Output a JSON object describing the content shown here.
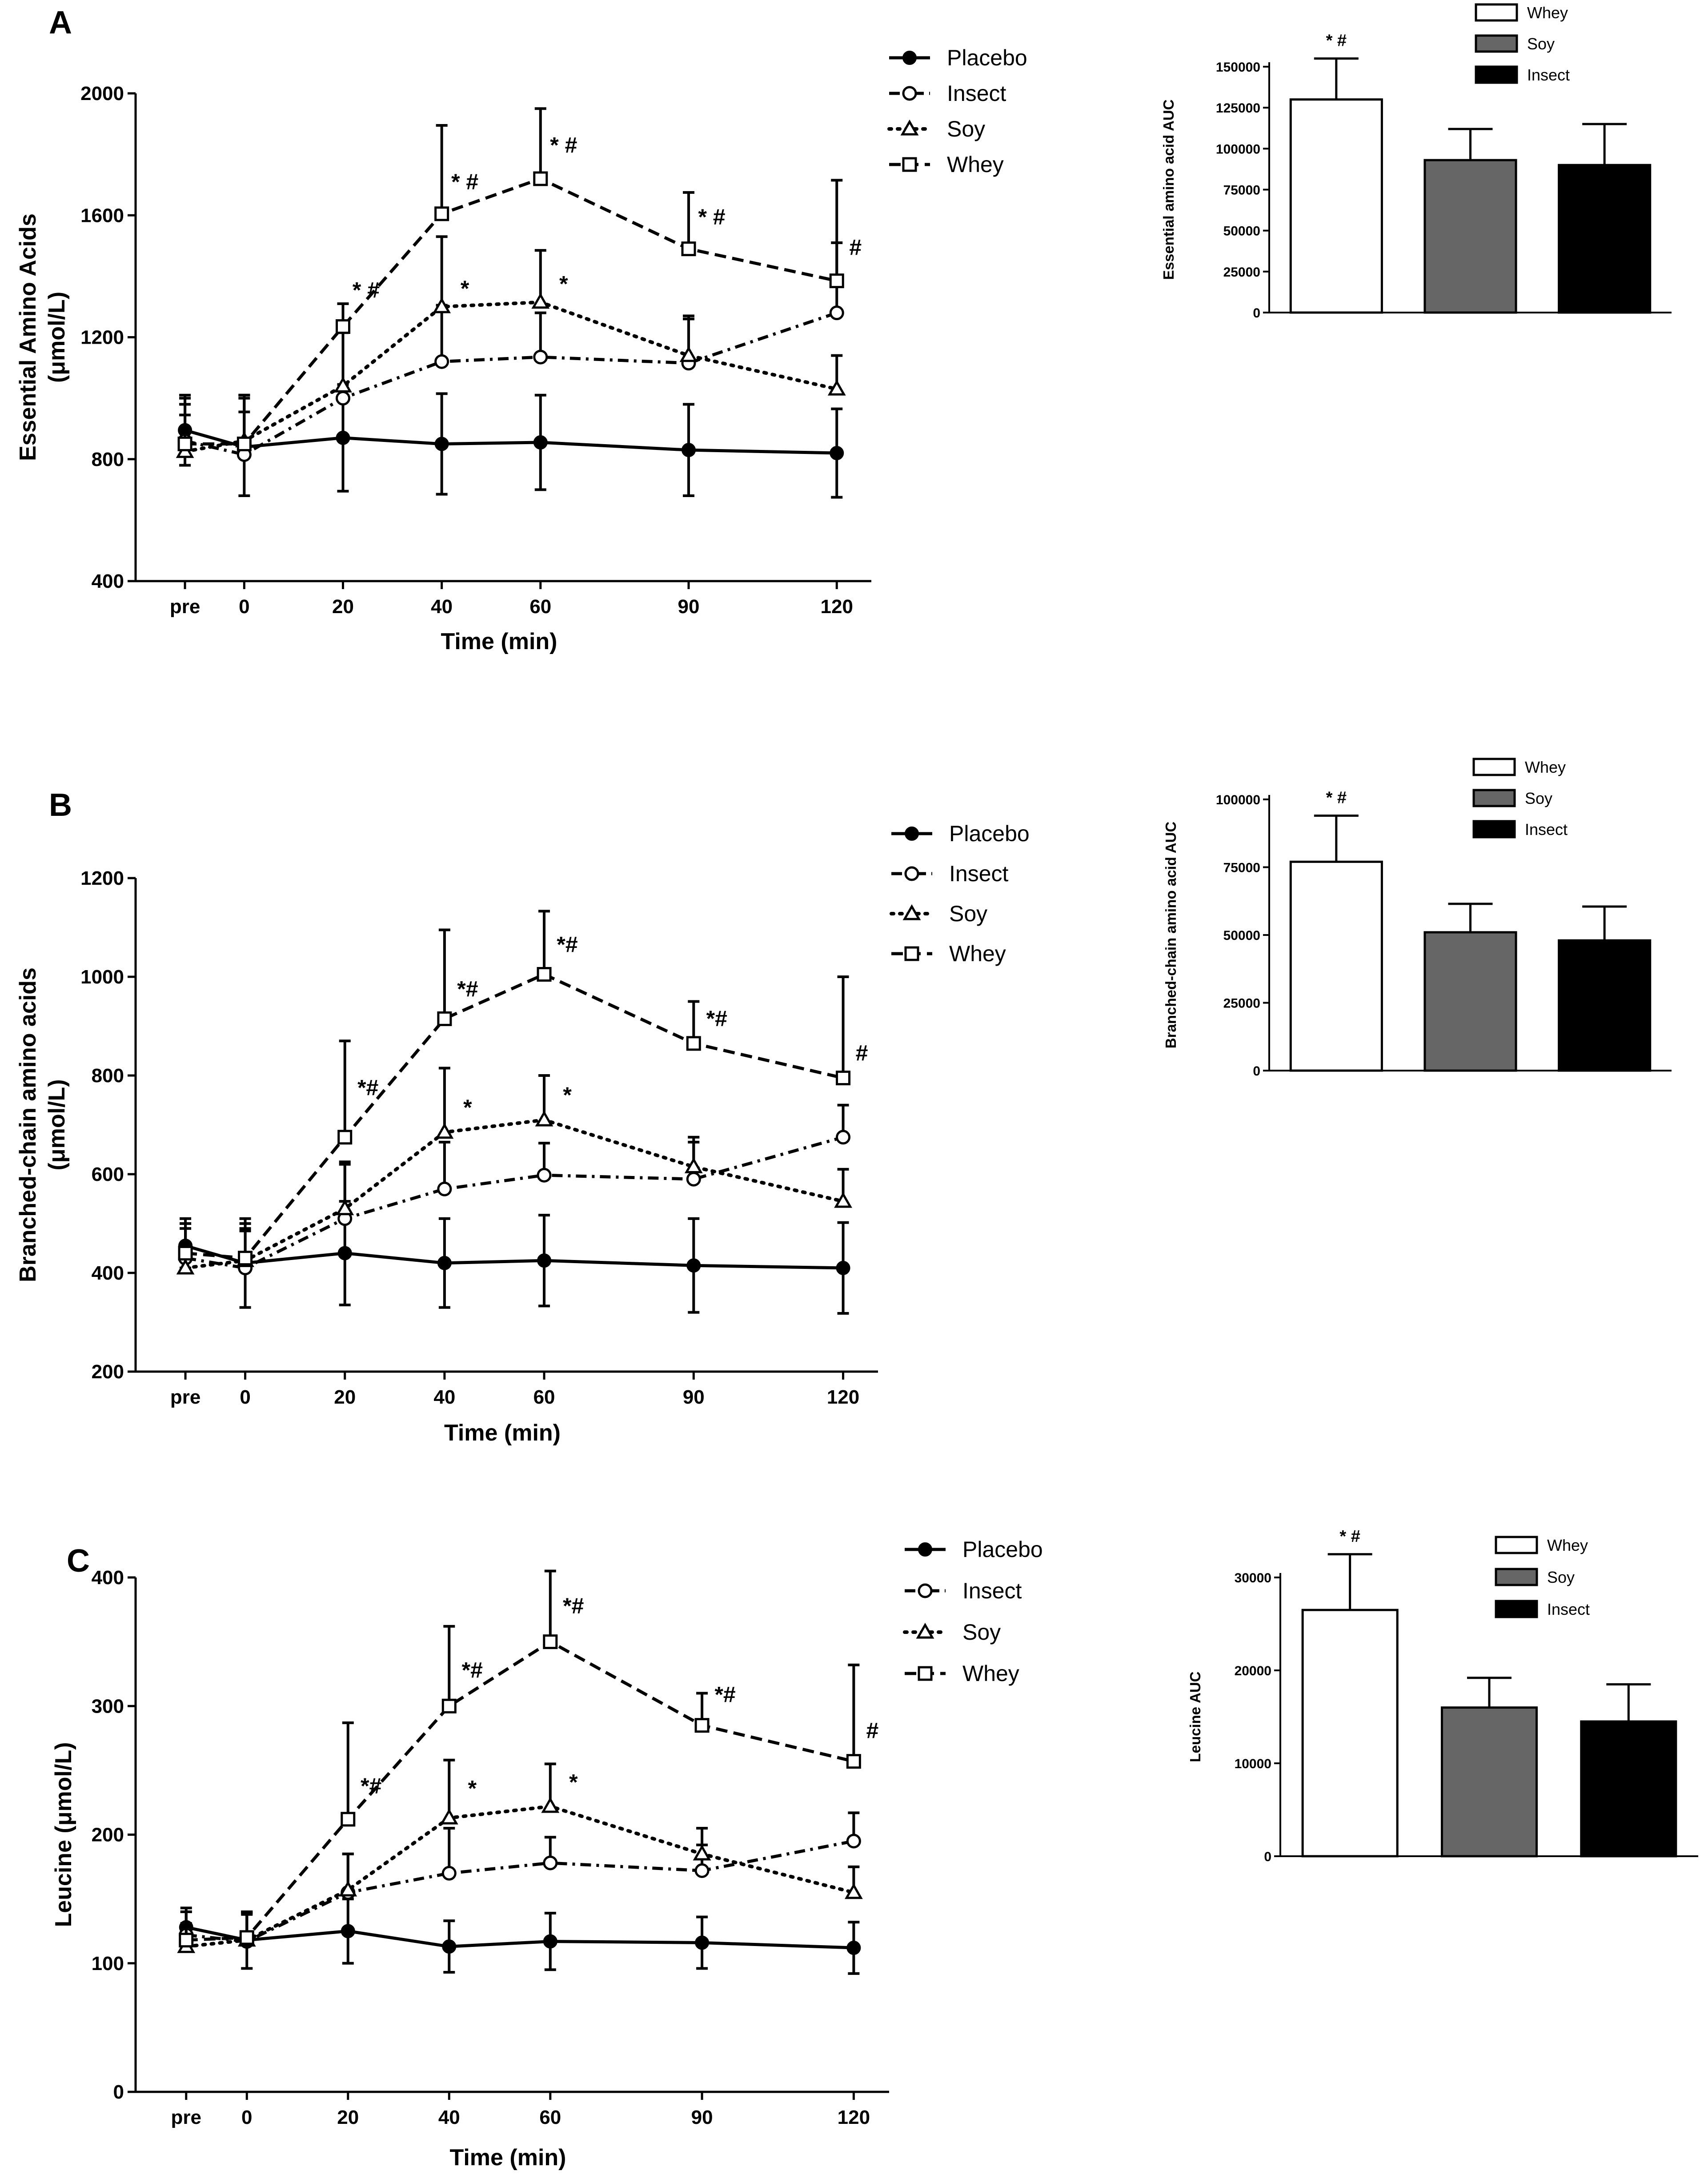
{
  "chart_data": [
    {
      "type": "line",
      "panel": "A",
      "ylabel": "Essential Amino Acids",
      "yunit": "(μmol/L)",
      "xlabel": "Time (min)",
      "categories": [
        "pre",
        "0",
        "20",
        "40",
        "60",
        "90",
        "120"
      ],
      "x": [
        -12,
        0,
        20,
        40,
        60,
        90,
        120
      ],
      "ylim": [
        400,
        2000
      ],
      "yticks": [
        400,
        800,
        1200,
        1600,
        2000
      ],
      "series": [
        {
          "name": "Placebo",
          "marker": "circle-filled",
          "dash": "solid",
          "values": [
            895,
            840,
            870,
            850,
            855,
            830,
            820
          ],
          "errors": [
            115,
            160,
            175,
            165,
            155,
            150,
            145
          ]
        },
        {
          "name": "Insect",
          "marker": "circle-open",
          "dash": "dashdot",
          "values": [
            860,
            815,
            1000,
            1120,
            1135,
            1115,
            1280
          ],
          "errors": [
            140,
            140,
            220,
            185,
            145,
            145,
            230
          ]
        },
        {
          "name": "Soy",
          "marker": "triangle-open",
          "dash": "dotted",
          "values": [
            825,
            860,
            1040,
            1300,
            1315,
            1140,
            1030
          ],
          "errors": [
            120,
            150,
            175,
            230,
            170,
            130,
            110
          ]
        },
        {
          "name": "Whey",
          "marker": "square-open",
          "dash": "dashed",
          "values": [
            850,
            850,
            1235,
            1605,
            1720,
            1490,
            1385
          ],
          "errors": [
            130,
            160,
            75,
            290,
            230,
            185,
            330
          ]
        }
      ],
      "annotations": [
        {
          "x": 20,
          "y": 1330,
          "text": "* #"
        },
        {
          "x": 40,
          "y": 1685,
          "text": "* #"
        },
        {
          "x": 60,
          "y": 1805,
          "text": "* #"
        },
        {
          "x": 90,
          "y": 1570,
          "text": "* #"
        },
        {
          "x": 120,
          "y": 1470,
          "text": "#"
        },
        {
          "x": 40,
          "y": 1335,
          "text": "*"
        },
        {
          "x": 60,
          "y": 1350,
          "text": "*"
        }
      ]
    },
    {
      "type": "bar",
      "panel": "A",
      "ylabel": "Essential amino acid AUC",
      "categories": [
        "Whey",
        "Soy",
        "Insect"
      ],
      "values": [
        130000,
        93000,
        90000
      ],
      "errors": [
        25000,
        19000,
        25000
      ],
      "colors": [
        "#ffffff",
        "#666666",
        "#000000"
      ],
      "ylim": [
        0,
        150000
      ],
      "yticks": [
        0,
        25000,
        50000,
        75000,
        100000,
        125000,
        150000
      ],
      "annotations": [
        {
          "category": "Whey",
          "text": "* #"
        }
      ]
    },
    {
      "type": "line",
      "panel": "B",
      "ylabel": "Branched-chain amino acids",
      "yunit": "(μmol/L)",
      "xlabel": "Time (min)",
      "categories": [
        "pre",
        "0",
        "20",
        "40",
        "60",
        "90",
        "120"
      ],
      "x": [
        -12,
        0,
        20,
        40,
        60,
        90,
        120
      ],
      "ylim": [
        200,
        1200
      ],
      "yticks": [
        200,
        400,
        600,
        800,
        1000,
        1200
      ],
      "series": [
        {
          "name": "Placebo",
          "marker": "circle-filled",
          "dash": "solid",
          "values": [
            455,
            420,
            440,
            420,
            425,
            415,
            410
          ],
          "errors": [
            45,
            90,
            105,
            90,
            92,
            95,
            92
          ]
        },
        {
          "name": "Insect",
          "marker": "circle-open",
          "dash": "dashdot",
          "values": [
            430,
            410,
            510,
            570,
            598,
            590,
            675
          ],
          "errors": [
            80,
            80,
            110,
            95,
            65,
            75,
            65
          ]
        },
        {
          "name": "Soy",
          "marker": "triangle-open",
          "dash": "dotted",
          "values": [
            410,
            425,
            530,
            685,
            710,
            615,
            545
          ],
          "errors": [
            80,
            60,
            95,
            130,
            90,
            60,
            65
          ]
        },
        {
          "name": "Whey",
          "marker": "square-open",
          "dash": "dashed",
          "values": [
            440,
            430,
            675,
            915,
            1005,
            865,
            795
          ],
          "errors": [
            60,
            70,
            195,
            180,
            128,
            85,
            205
          ]
        }
      ],
      "annotations": [
        {
          "x": 20,
          "y": 760,
          "text": "*#"
        },
        {
          "x": 40,
          "y": 960,
          "text": "*#"
        },
        {
          "x": 60,
          "y": 1050,
          "text": "*#"
        },
        {
          "x": 90,
          "y": 900,
          "text": "*#"
        },
        {
          "x": 120,
          "y": 830,
          "text": "#"
        },
        {
          "x": 40,
          "y": 720,
          "text": "*"
        },
        {
          "x": 60,
          "y": 745,
          "text": "*"
        }
      ]
    },
    {
      "type": "bar",
      "panel": "B",
      "ylabel": "Branched-chain amino acid AUC",
      "categories": [
        "Whey",
        "Soy",
        "Insect"
      ],
      "values": [
        77000,
        51000,
        48000
      ],
      "errors": [
        17000,
        10500,
        12500
      ],
      "colors": [
        "#ffffff",
        "#666666",
        "#000000"
      ],
      "ylim": [
        0,
        100000
      ],
      "yticks": [
        0,
        25000,
        50000,
        75000,
        100000
      ],
      "annotations": [
        {
          "category": "Whey",
          "text": "* #"
        }
      ]
    },
    {
      "type": "line",
      "panel": "C",
      "ylabel": "Leucine (μmol/L)",
      "xlabel": "Time (min)",
      "categories": [
        "pre",
        "0",
        "20",
        "40",
        "60",
        "90",
        "120"
      ],
      "x": [
        -12,
        0,
        20,
        40,
        60,
        90,
        120
      ],
      "ylim": [
        0,
        400
      ],
      "yticks": [
        0,
        100,
        200,
        300,
        400
      ],
      "series": [
        {
          "name": "Placebo",
          "marker": "circle-filled",
          "dash": "solid",
          "values": [
            128,
            118,
            125,
            113,
            117,
            116,
            112
          ],
          "errors": [
            15,
            22,
            25,
            20,
            22,
            20,
            20
          ]
        },
        {
          "name": "Insect",
          "marker": "circle-open",
          "dash": "dashdot",
          "values": [
            122,
            117,
            155,
            170,
            178,
            172,
            195
          ],
          "errors": [
            18,
            22,
            30,
            35,
            20,
            20,
            22
          ]
        },
        {
          "name": "Soy",
          "marker": "triangle-open",
          "dash": "dotted",
          "values": [
            113,
            118,
            157,
            213,
            222,
            185,
            155
          ],
          "errors": [
            18,
            20,
            28,
            45,
            33,
            20,
            20
          ]
        },
        {
          "name": "Whey",
          "marker": "square-open",
          "dash": "dashed",
          "values": [
            118,
            120,
            212,
            300,
            350,
            285,
            257
          ],
          "errors": [
            22,
            20,
            75,
            62,
            55,
            25,
            75
          ]
        }
      ],
      "annotations": [
        {
          "x": 20,
          "y": 232,
          "text": "*#"
        },
        {
          "x": 40,
          "y": 322,
          "text": "*#"
        },
        {
          "x": 60,
          "y": 372,
          "text": "*#"
        },
        {
          "x": 90,
          "y": 303,
          "text": "*#"
        },
        {
          "x": 120,
          "y": 275,
          "text": "#"
        },
        {
          "x": 40,
          "y": 230,
          "text": "*"
        },
        {
          "x": 60,
          "y": 235,
          "text": "*"
        }
      ]
    },
    {
      "type": "bar",
      "panel": "C",
      "ylabel": "Leucine AUC",
      "categories": [
        "Whey",
        "Soy",
        "Insect"
      ],
      "values": [
        26500,
        16000,
        14500
      ],
      "errors": [
        6000,
        3200,
        4000
      ],
      "colors": [
        "#ffffff",
        "#666666",
        "#000000"
      ],
      "ylim": [
        0,
        30000
      ],
      "yticks": [
        0,
        10000,
        20000,
        30000
      ],
      "annotations": [
        {
          "category": "Whey",
          "text": "* #"
        }
      ]
    }
  ]
}
